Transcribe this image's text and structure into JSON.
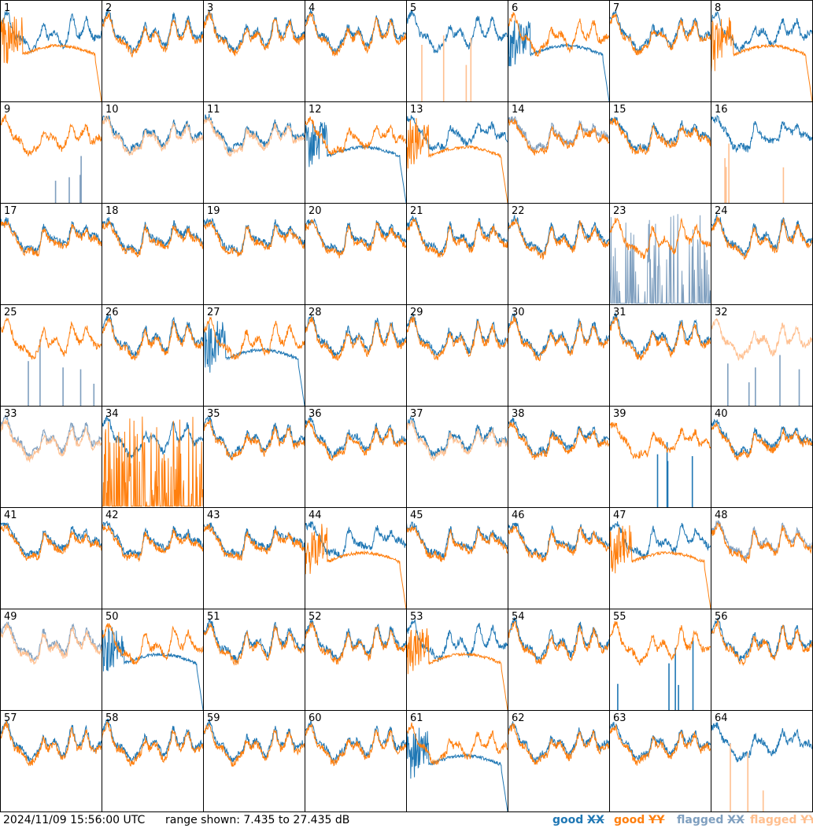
{
  "footer": {
    "timestamp": "2024/11/09 15:56:00 UTC",
    "range_text": "range shown: 7.435 to 27.435 dB"
  },
  "legend": [
    {
      "status": "good",
      "pol": "XX",
      "color": "#1f77b4"
    },
    {
      "status": "good",
      "pol": "YY",
      "color": "#ff7f0e"
    },
    {
      "status": "flagged",
      "pol": "XX",
      "color": "#7f9fbf"
    },
    {
      "status": "flagged",
      "pol": "YY",
      "color": "#ffbf8f"
    }
  ],
  "colors": {
    "good_xx": "#1f77b4",
    "good_yy": "#ff7f0e",
    "flagged_xx": "#7f9fbf",
    "flagged_yy": "#ffbf8f"
  },
  "chart_data": {
    "type": "line",
    "layout": "small-multiples 8x8",
    "y_range_db": [
      7.435,
      27.435
    ],
    "grid": false,
    "series_names": [
      "XX",
      "YY"
    ],
    "panels": [
      {
        "id": "1",
        "xx": "good",
        "yy": "good",
        "xx_shape": "normal",
        "yy_shape": "dropout"
      },
      {
        "id": "2",
        "xx": "good",
        "yy": "good",
        "xx_shape": "normal",
        "yy_shape": "normal"
      },
      {
        "id": "3",
        "xx": "good",
        "yy": "good",
        "xx_shape": "normal",
        "yy_shape": "normal"
      },
      {
        "id": "4",
        "xx": "good",
        "yy": "good",
        "xx_shape": "normal",
        "yy_shape": "normal"
      },
      {
        "id": "5",
        "xx": "good",
        "yy": "flagged",
        "xx_shape": "normal",
        "yy_shape": "spikes"
      },
      {
        "id": "6",
        "xx": "good",
        "yy": "good",
        "xx_shape": "dropout",
        "yy_shape": "normal"
      },
      {
        "id": "7",
        "xx": "good",
        "yy": "good",
        "xx_shape": "normal",
        "yy_shape": "normal"
      },
      {
        "id": "8",
        "xx": "good",
        "yy": "good",
        "xx_shape": "normal",
        "yy_shape": "dropout"
      },
      {
        "id": "9",
        "xx": "flagged",
        "yy": "good",
        "xx_shape": "spikes",
        "yy_shape": "normal"
      },
      {
        "id": "10",
        "xx": "good",
        "yy": "flagged",
        "xx_shape": "normal",
        "yy_shape": "normal"
      },
      {
        "id": "11",
        "xx": "good",
        "yy": "flagged",
        "xx_shape": "normal",
        "yy_shape": "normal"
      },
      {
        "id": "12",
        "xx": "good",
        "yy": "good",
        "xx_shape": "dropout",
        "yy_shape": "normal"
      },
      {
        "id": "13",
        "xx": "good",
        "yy": "good",
        "xx_shape": "normal",
        "yy_shape": "dropout"
      },
      {
        "id": "14",
        "xx": "flagged",
        "yy": "good",
        "xx_shape": "normal",
        "yy_shape": "normal"
      },
      {
        "id": "15",
        "xx": "good",
        "yy": "good",
        "xx_shape": "normal",
        "yy_shape": "normal"
      },
      {
        "id": "16",
        "xx": "good",
        "yy": "flagged",
        "xx_shape": "normal",
        "yy_shape": "spikes"
      },
      {
        "id": "17",
        "xx": "good",
        "yy": "good",
        "xx_shape": "normal",
        "yy_shape": "normal"
      },
      {
        "id": "18",
        "xx": "good",
        "yy": "good",
        "xx_shape": "normal",
        "yy_shape": "normal"
      },
      {
        "id": "19",
        "xx": "good",
        "yy": "good",
        "xx_shape": "normal",
        "yy_shape": "normal"
      },
      {
        "id": "20",
        "xx": "good",
        "yy": "good",
        "xx_shape": "normal",
        "yy_shape": "normal"
      },
      {
        "id": "21",
        "xx": "good",
        "yy": "good",
        "xx_shape": "normal",
        "yy_shape": "normal"
      },
      {
        "id": "22",
        "xx": "good",
        "yy": "good",
        "xx_shape": "normal",
        "yy_shape": "normal"
      },
      {
        "id": "23",
        "xx": "flagged",
        "yy": "good",
        "xx_shape": "noise",
        "yy_shape": "normal"
      },
      {
        "id": "24",
        "xx": "good",
        "yy": "good",
        "xx_shape": "normal",
        "yy_shape": "normal"
      },
      {
        "id": "25",
        "xx": "flagged",
        "yy": "good",
        "xx_shape": "spikes",
        "yy_shape": "normal"
      },
      {
        "id": "26",
        "xx": "good",
        "yy": "good",
        "xx_shape": "normal",
        "yy_shape": "normal"
      },
      {
        "id": "27",
        "xx": "good",
        "yy": "good",
        "xx_shape": "dropout",
        "yy_shape": "normal"
      },
      {
        "id": "28",
        "xx": "good",
        "yy": "good",
        "xx_shape": "normal",
        "yy_shape": "normal"
      },
      {
        "id": "29",
        "xx": "good",
        "yy": "good",
        "xx_shape": "normal",
        "yy_shape": "normal"
      },
      {
        "id": "30",
        "xx": "good",
        "yy": "good",
        "xx_shape": "normal",
        "yy_shape": "normal"
      },
      {
        "id": "31",
        "xx": "good",
        "yy": "good",
        "xx_shape": "normal",
        "yy_shape": "normal"
      },
      {
        "id": "32",
        "xx": "flagged",
        "yy": "flagged",
        "xx_shape": "spikes",
        "yy_shape": "normal"
      },
      {
        "id": "33",
        "xx": "flagged",
        "yy": "flagged",
        "xx_shape": "normal",
        "yy_shape": "normal"
      },
      {
        "id": "34",
        "xx": "good",
        "yy": "good",
        "xx_shape": "normal",
        "yy_shape": "noise"
      },
      {
        "id": "35",
        "xx": "good",
        "yy": "good",
        "xx_shape": "normal",
        "yy_shape": "normal"
      },
      {
        "id": "36",
        "xx": "good",
        "yy": "good",
        "xx_shape": "normal",
        "yy_shape": "normal"
      },
      {
        "id": "37",
        "xx": "good",
        "yy": "flagged",
        "xx_shape": "normal",
        "yy_shape": "normal"
      },
      {
        "id": "38",
        "xx": "good",
        "yy": "good",
        "xx_shape": "normal",
        "yy_shape": "normal"
      },
      {
        "id": "39",
        "xx": "good",
        "yy": "good",
        "xx_shape": "spikes",
        "yy_shape": "normal"
      },
      {
        "id": "40",
        "xx": "good",
        "yy": "good",
        "xx_shape": "normal",
        "yy_shape": "normal"
      },
      {
        "id": "41",
        "xx": "good",
        "yy": "good",
        "xx_shape": "normal",
        "yy_shape": "normal"
      },
      {
        "id": "42",
        "xx": "good",
        "yy": "good",
        "xx_shape": "normal",
        "yy_shape": "normal"
      },
      {
        "id": "43",
        "xx": "good",
        "yy": "good",
        "xx_shape": "normal",
        "yy_shape": "normal"
      },
      {
        "id": "44",
        "xx": "good",
        "yy": "good",
        "xx_shape": "normal",
        "yy_shape": "dropout"
      },
      {
        "id": "45",
        "xx": "good",
        "yy": "good",
        "xx_shape": "normal",
        "yy_shape": "normal"
      },
      {
        "id": "46",
        "xx": "good",
        "yy": "good",
        "xx_shape": "normal",
        "yy_shape": "normal"
      },
      {
        "id": "47",
        "xx": "good",
        "yy": "good",
        "xx_shape": "normal",
        "yy_shape": "dropout"
      },
      {
        "id": "48",
        "xx": "flagged",
        "yy": "good",
        "xx_shape": "normal",
        "yy_shape": "normal"
      },
      {
        "id": "49",
        "xx": "flagged",
        "yy": "flagged",
        "xx_shape": "normal",
        "yy_shape": "normal"
      },
      {
        "id": "50",
        "xx": "good",
        "yy": "good",
        "xx_shape": "dropout",
        "yy_shape": "normal"
      },
      {
        "id": "51",
        "xx": "good",
        "yy": "good",
        "xx_shape": "normal",
        "yy_shape": "normal"
      },
      {
        "id": "52",
        "xx": "good",
        "yy": "good",
        "xx_shape": "normal",
        "yy_shape": "normal"
      },
      {
        "id": "53",
        "xx": "good",
        "yy": "good",
        "xx_shape": "normal",
        "yy_shape": "dropout"
      },
      {
        "id": "54",
        "xx": "good",
        "yy": "good",
        "xx_shape": "normal",
        "yy_shape": "normal"
      },
      {
        "id": "55",
        "xx": "good",
        "yy": "good",
        "xx_shape": "spikes",
        "yy_shape": "normal"
      },
      {
        "id": "56",
        "xx": "good",
        "yy": "good",
        "xx_shape": "normal",
        "yy_shape": "normal"
      },
      {
        "id": "57",
        "xx": "good",
        "yy": "good",
        "xx_shape": "normal",
        "yy_shape": "normal"
      },
      {
        "id": "58",
        "xx": "good",
        "yy": "good",
        "xx_shape": "normal",
        "yy_shape": "normal"
      },
      {
        "id": "59",
        "xx": "good",
        "yy": "good",
        "xx_shape": "normal",
        "yy_shape": "normal"
      },
      {
        "id": "60",
        "xx": "good",
        "yy": "good",
        "xx_shape": "normal",
        "yy_shape": "normal"
      },
      {
        "id": "61",
        "xx": "good",
        "yy": "good",
        "xx_shape": "dropout",
        "yy_shape": "normal"
      },
      {
        "id": "62",
        "xx": "good",
        "yy": "good",
        "xx_shape": "normal",
        "yy_shape": "normal"
      },
      {
        "id": "63",
        "xx": "good",
        "yy": "good",
        "xx_shape": "normal",
        "yy_shape": "normal"
      },
      {
        "id": "64",
        "xx": "good",
        "yy": "flagged",
        "xx_shape": "normal",
        "yy_shape": "spikes"
      }
    ]
  }
}
